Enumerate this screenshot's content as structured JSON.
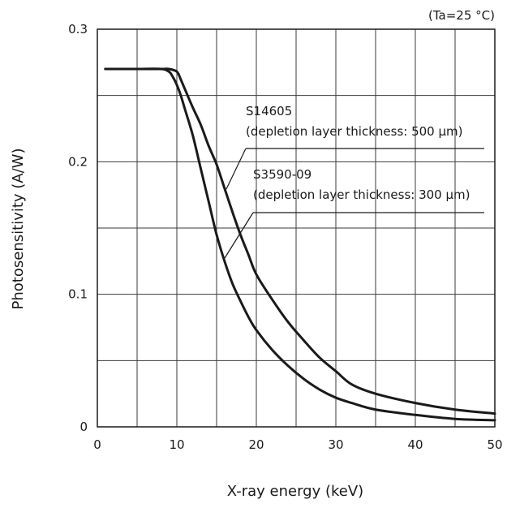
{
  "chart_data": {
    "type": "line",
    "condition": "(Ta=25 °C)",
    "xlabel": "X-ray energy (keV)",
    "ylabel": "Photosensitivity (A/W)",
    "xlim": [
      0,
      50
    ],
    "ylim": [
      0,
      0.3
    ],
    "x_ticks": [
      0,
      10,
      20,
      30,
      40,
      50
    ],
    "x_tick_labels": [
      "0",
      "10",
      "20",
      "30",
      "40",
      "50"
    ],
    "y_ticks": [
      0,
      0.1,
      0.2,
      0.3
    ],
    "y_tick_labels": [
      "0",
      "0.1",
      "0.2",
      "0.3"
    ],
    "grid": true,
    "series": [
      {
        "name": "S14605",
        "label_line1": "S14605",
        "label_line2": "(depletion layer thickness: 500 μm)",
        "x": [
          1,
          5,
          8,
          9,
          10,
          10.5,
          11,
          12,
          13,
          14,
          15,
          16,
          17,
          18,
          19,
          20,
          22,
          24,
          26,
          28,
          30,
          32,
          35,
          40,
          45,
          50
        ],
        "y": [
          0.27,
          0.27,
          0.27,
          0.27,
          0.268,
          0.262,
          0.255,
          0.241,
          0.228,
          0.212,
          0.198,
          0.18,
          0.162,
          0.145,
          0.13,
          0.115,
          0.096,
          0.079,
          0.065,
          0.052,
          0.042,
          0.032,
          0.025,
          0.018,
          0.013,
          0.01
        ]
      },
      {
        "name": "S3590-09",
        "label_line1": "S3590-09",
        "label_line2": "(depletion layer thickness: 300 μm)",
        "x": [
          1,
          5,
          8,
          9,
          9.5,
          10,
          10.5,
          11,
          12,
          13,
          14,
          15,
          16,
          17,
          18,
          19,
          20,
          22,
          24,
          26,
          28,
          30,
          32,
          35,
          40,
          45,
          50
        ],
        "y": [
          0.27,
          0.27,
          0.27,
          0.268,
          0.264,
          0.258,
          0.25,
          0.24,
          0.22,
          0.195,
          0.17,
          0.145,
          0.125,
          0.108,
          0.095,
          0.083,
          0.073,
          0.058,
          0.046,
          0.036,
          0.028,
          0.022,
          0.018,
          0.013,
          0.009,
          0.006,
          0.005
        ]
      }
    ]
  }
}
